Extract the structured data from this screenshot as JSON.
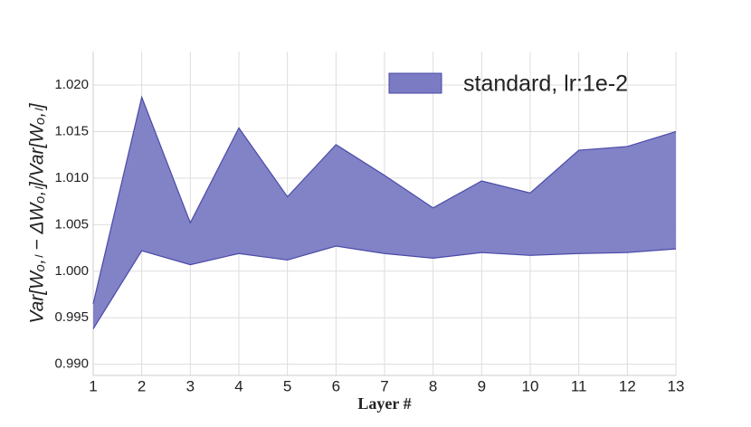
{
  "chart_data": {
    "type": "band",
    "ylabel": "Var[Wₒ,ₗ − ΔWₒ,ₗ]/Var[Wₒ,ₗ]",
    "xlabel": "Layer #",
    "x": [
      1,
      2,
      3,
      4,
      5,
      6,
      7,
      8,
      9,
      10,
      11,
      12,
      13
    ],
    "series": [
      {
        "name": "standard, lr:1e-2",
        "color": "#7b7bc4",
        "edge_color": "#4a4aa8",
        "upper": [
          0.9965,
          1.0187,
          1.0052,
          1.0154,
          1.008,
          1.0136,
          1.0103,
          1.0068,
          1.0097,
          1.0084,
          1.013,
          1.0134,
          1.015
        ],
        "lower": [
          0.9938,
          1.0022,
          1.0007,
          1.0019,
          1.0012,
          1.0027,
          1.0019,
          1.0014,
          1.002,
          1.0017,
          1.0019,
          1.002,
          1.0024
        ]
      }
    ],
    "xlim": [
      1,
      13
    ],
    "xticks": [
      1,
      2,
      3,
      4,
      5,
      6,
      7,
      8,
      9,
      10,
      11,
      12,
      13
    ],
    "ylim": [
      0.9888,
      1.0236
    ],
    "yticks": [
      {
        "value": 0.99,
        "label": "0.990"
      },
      0.995,
      {
        "value": 1.0,
        "label": "1.000"
      },
      1.005,
      {
        "value": 1.01,
        "label": "1.010"
      },
      1.015,
      {
        "value": 1.02,
        "label": "1.020"
      }
    ],
    "grid": true,
    "legend": "upper right"
  }
}
